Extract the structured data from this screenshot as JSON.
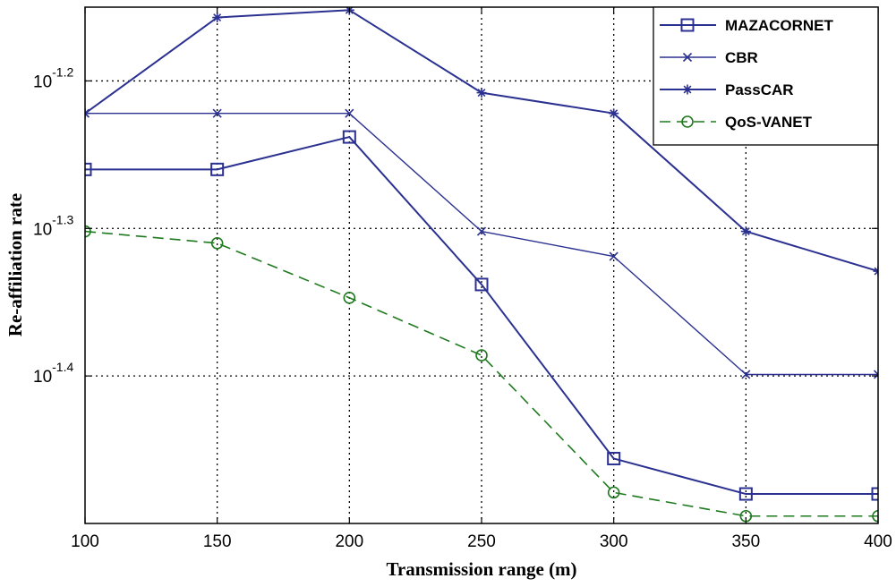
{
  "chart_data": {
    "type": "line",
    "xlabel": "Transmission range (m)",
    "ylabel": "Re-affiliation rate",
    "yscale": "log10",
    "x": [
      100,
      150,
      200,
      250,
      300,
      350,
      400
    ],
    "xlim": [
      100,
      400
    ],
    "ylim_exponent": [
      -1.5,
      -1.15
    ],
    "x_ticks": [
      "100",
      "150",
      "200",
      "250",
      "300",
      "350",
      "400"
    ],
    "y_ticks": [
      {
        "exp": -1.2,
        "base": "10",
        "sup": "-1.2"
      },
      {
        "exp": -1.3,
        "base": "10",
        "sup": "-1.3"
      },
      {
        "exp": -1.4,
        "base": "10",
        "sup": "-1.4"
      }
    ],
    "grid": true,
    "legend_position": "top-right",
    "series": [
      {
        "name": "MAZACORNET",
        "marker": "square",
        "style": "solid",
        "color": "#2b3190",
        "width": 2,
        "log10_values": [
          -1.26,
          -1.26,
          -1.238,
          -1.338,
          -1.456,
          -1.48,
          -1.48
        ]
      },
      {
        "name": "CBR",
        "marker": "x",
        "style": "solid",
        "color": "#2b3190",
        "width": 1.4,
        "log10_values": [
          -1.222,
          -1.222,
          -1.222,
          -1.302,
          -1.319,
          -1.399,
          -1.399
        ]
      },
      {
        "name": "PassCAR",
        "marker": "star",
        "style": "solid",
        "color": "#2b3190",
        "width": 2,
        "log10_values": [
          -1.222,
          -1.157,
          -1.152,
          -1.208,
          -1.222,
          -1.302,
          -1.329
        ]
      },
      {
        "name": "QoS-VANET",
        "marker": "circle",
        "style": "dashed",
        "color": "#1f7a1f",
        "width": 1.6,
        "log10_values": [
          -1.302,
          -1.31,
          -1.347,
          -1.386,
          -1.479,
          -1.495,
          -1.495
        ]
      }
    ]
  }
}
